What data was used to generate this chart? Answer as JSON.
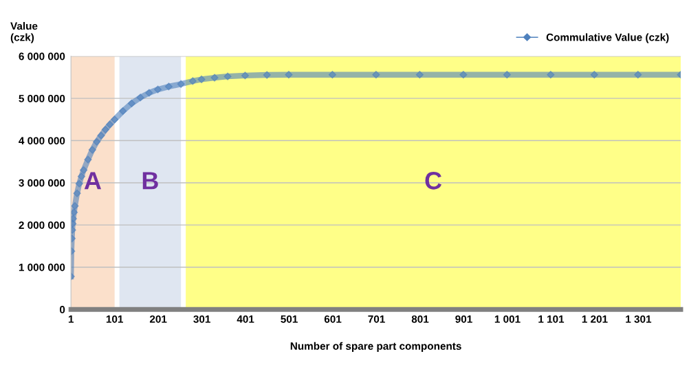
{
  "chart_data": {
    "type": "line",
    "ylabel": "Value\n(czk)",
    "xlabel": "Number of spare part components",
    "x": [
      1,
      2,
      3,
      4,
      5,
      6,
      8,
      10,
      15,
      20,
      25,
      30,
      40,
      50,
      60,
      70,
      80,
      90,
      101,
      120,
      140,
      160,
      180,
      200,
      225,
      253,
      280,
      300,
      330,
      360,
      400,
      450,
      500,
      600,
      700,
      800,
      900,
      1000,
      1100,
      1200,
      1300,
      1398
    ],
    "series": [
      {
        "name": "Commulative Value (czk)",
        "color": "#4f81bd",
        "values": [
          780000,
          1380000,
          1680000,
          1880000,
          2030000,
          2150000,
          2300000,
          2450000,
          2750000,
          2980000,
          3150000,
          3300000,
          3550000,
          3780000,
          3970000,
          4120000,
          4260000,
          4380000,
          4500000,
          4700000,
          4880000,
          5020000,
          5130000,
          5210000,
          5280000,
          5340000,
          5410000,
          5450000,
          5490000,
          5520000,
          5540000,
          5555000,
          5560000,
          5560000,
          5560000,
          5560000,
          5560000,
          5560000,
          5560000,
          5560000,
          5560000,
          5560000
        ]
      }
    ],
    "xlim": [
      1,
      1398
    ],
    "ylim": [
      0,
      6000000
    ],
    "xticks": [
      1,
      101,
      201,
      301,
      401,
      501,
      601,
      701,
      801,
      901,
      {
        "value": 1001,
        "label": "1 001"
      },
      {
        "value": 1101,
        "label": "1 101"
      },
      {
        "value": 1201,
        "label": "1 201"
      },
      {
        "value": 1301,
        "label": "1 301"
      }
    ],
    "yticks": [
      0,
      {
        "value": 1000000,
        "label": "1 000 000"
      },
      {
        "value": 2000000,
        "label": "2 000 000"
      },
      {
        "value": 3000000,
        "label": "3 000 000"
      },
      {
        "value": 4000000,
        "label": "4 000 000"
      },
      {
        "value": 5000000,
        "label": "5 000 000"
      },
      {
        "value": 6000000,
        "label": "6 000 000"
      }
    ],
    "bands": [
      {
        "axis": "x",
        "from": 1,
        "to": 101,
        "label": "A",
        "color": "#fbe0cb"
      },
      {
        "axis": "x",
        "from": 112,
        "to": 253,
        "label": "B",
        "color": "#dfe6f1"
      },
      {
        "axis": "x",
        "from": 264,
        "to": 1398,
        "label": "C",
        "color": "#ffff88"
      }
    ],
    "grid": "y",
    "legend": "top right",
    "marker": "diamond",
    "line_style": "solid"
  }
}
